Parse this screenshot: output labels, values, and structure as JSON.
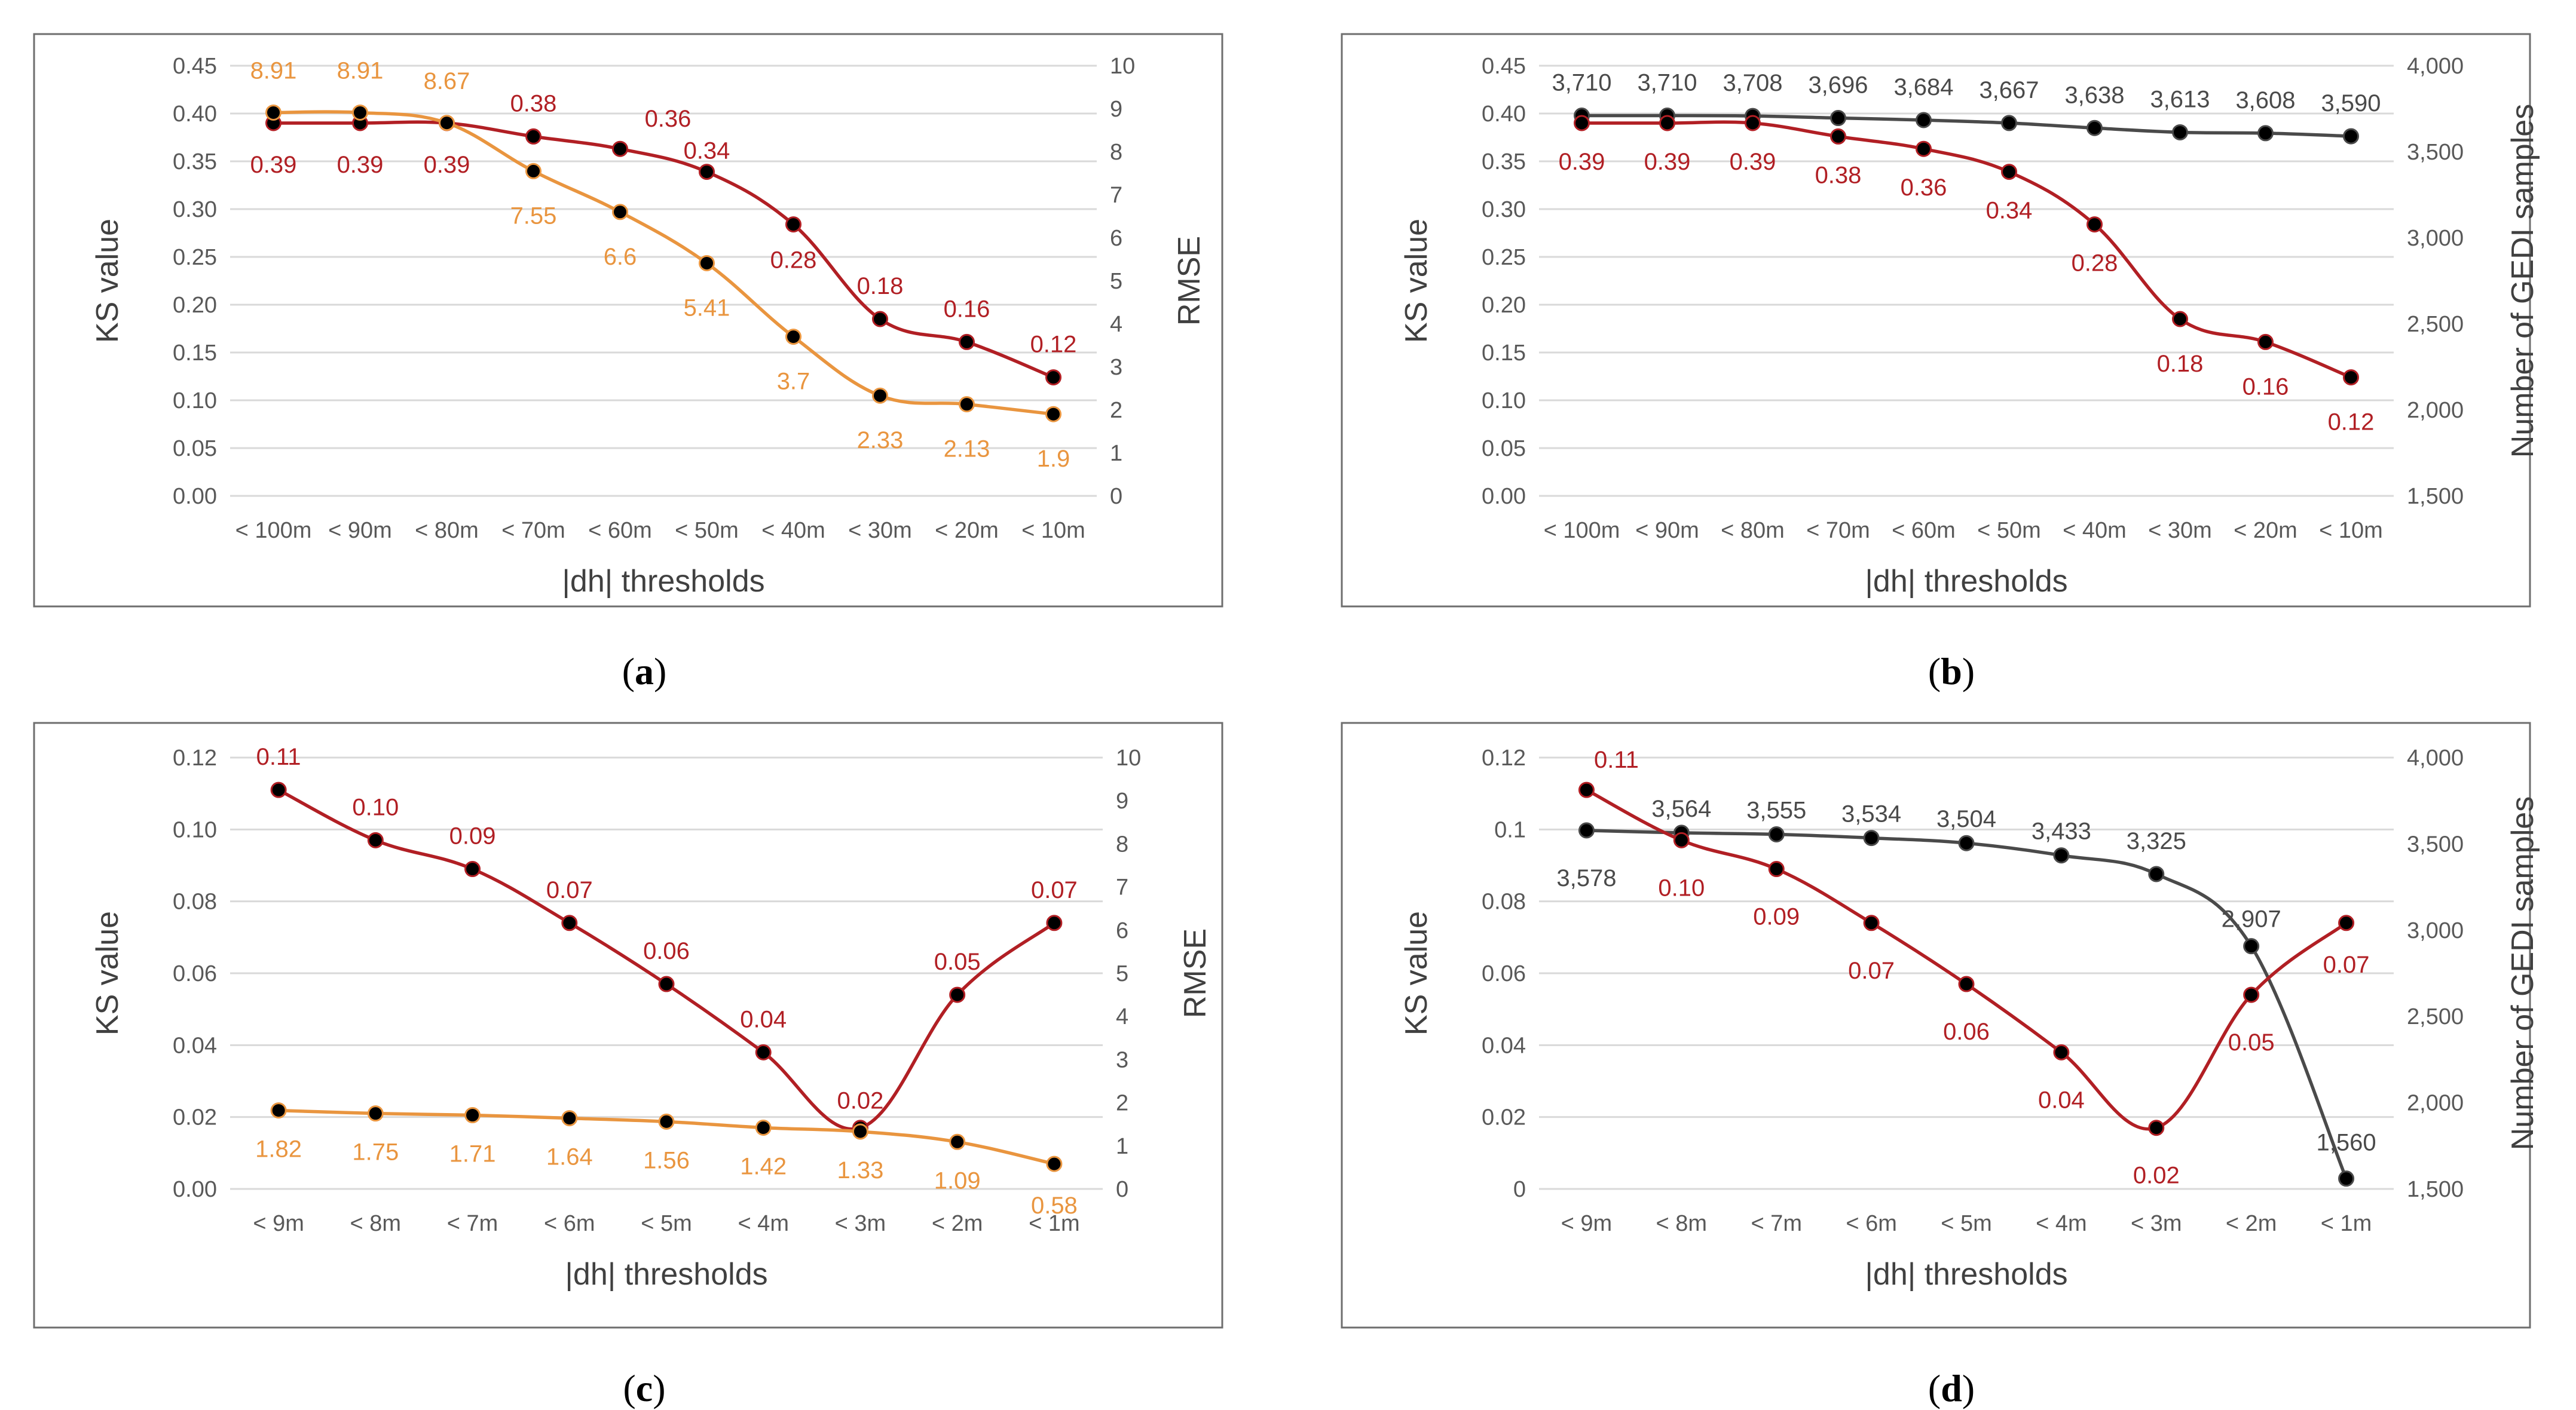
{
  "colors": {
    "ks": "#b11f24",
    "rmse": "#e9953f",
    "gedi": "#4a4a4a",
    "marker": "#000000"
  },
  "charts": [
    {
      "caption": "a",
      "type": "line",
      "title": "",
      "xlabel": "|dh| thresholds",
      "ylabel_left": "KS value",
      "ylabel_right": "RMSE",
      "categories": [
        "< 100m",
        "< 90m",
        "< 80m",
        "< 70m",
        "< 60m",
        "< 50m",
        "< 40m",
        "< 30m",
        "< 20m",
        "< 10m"
      ],
      "left_ticks": [
        "0.00",
        "0.05",
        "0.10",
        "0.15",
        "0.20",
        "0.25",
        "0.30",
        "0.35",
        "0.40",
        "0.45"
      ],
      "right_ticks": [
        "0",
        "1",
        "2",
        "3",
        "4",
        "5",
        "6",
        "7",
        "8",
        "9",
        "10"
      ],
      "ylim_left": [
        0,
        0.45
      ],
      "ylim_right": [
        0,
        10
      ],
      "series": [
        {
          "name": "KS value",
          "axis": "left",
          "color": "ks",
          "values": [
            0.39,
            0.39,
            0.39,
            0.376,
            0.363,
            0.339,
            0.284,
            0.185,
            0.161,
            0.124
          ],
          "labels": [
            "0.39",
            "0.39",
            "0.39",
            "0.38",
            "0.36",
            "0.34",
            "0.28",
            "0.18",
            "0.16",
            "0.12"
          ]
        },
        {
          "name": "RMSE",
          "axis": "right",
          "color": "rmse",
          "values": [
            8.91,
            8.91,
            8.67,
            7.55,
            6.6,
            5.41,
            3.7,
            2.33,
            2.13,
            1.9
          ],
          "labels": [
            "8.91",
            "8.91",
            "8.67",
            "7.55",
            "6.6",
            "5.41",
            "3.7",
            "2.33",
            "2.13",
            "1.9"
          ]
        }
      ]
    },
    {
      "caption": "b",
      "type": "line",
      "title": "",
      "xlabel": "|dh| thresholds",
      "ylabel_left": "KS value",
      "ylabel_right": "Number of GEDI samples",
      "categories": [
        "< 100m",
        "< 90m",
        "< 80m",
        "< 70m",
        "< 60m",
        "< 50m",
        "< 40m",
        "< 30m",
        "< 20m",
        "< 10m"
      ],
      "left_ticks": [
        "0.00",
        "0.05",
        "0.10",
        "0.15",
        "0.20",
        "0.25",
        "0.30",
        "0.35",
        "0.40",
        "0.45"
      ],
      "right_ticks": [
        "1,500",
        "2,000",
        "2,500",
        "3,000",
        "3,500",
        "4,000"
      ],
      "ylim_left": [
        0,
        0.45
      ],
      "ylim_right": [
        1500,
        4000
      ],
      "series": [
        {
          "name": "Number of GEDI samples",
          "axis": "right",
          "color": "gedi",
          "values": [
            3710,
            3710,
            3708,
            3696,
            3684,
            3667,
            3638,
            3613,
            3608,
            3590
          ],
          "labels": [
            "3,710",
            "3,710",
            "3,708",
            "3,696",
            "3,684",
            "3,667",
            "3,638",
            "3,613",
            "3,608",
            "3,590"
          ]
        },
        {
          "name": "KS value",
          "axis": "left",
          "color": "ks",
          "values": [
            0.39,
            0.39,
            0.39,
            0.376,
            0.363,
            0.339,
            0.284,
            0.185,
            0.161,
            0.124
          ],
          "labels": [
            "0.39",
            "0.39",
            "0.39",
            "0.38",
            "0.36",
            "0.34",
            "0.28",
            "0.18",
            "0.16",
            "0.12"
          ]
        }
      ]
    },
    {
      "caption": "c",
      "type": "line",
      "title": "",
      "xlabel": "|dh| thresholds",
      "ylabel_left": "KS value",
      "ylabel_right": "RMSE",
      "categories": [
        "< 9m",
        "< 8m",
        "< 7m",
        "< 6m",
        "< 5m",
        "< 4m",
        "< 3m",
        "< 2m",
        "< 1m"
      ],
      "left_ticks": [
        "0.00",
        "0.02",
        "0.04",
        "0.06",
        "0.08",
        "0.10",
        "0.12"
      ],
      "right_ticks": [
        "0",
        "1",
        "2",
        "3",
        "4",
        "5",
        "6",
        "7",
        "8",
        "9",
        "10"
      ],
      "ylim_left": [
        0,
        0.12
      ],
      "ylim_right": [
        0,
        10
      ],
      "series": [
        {
          "name": "KS value",
          "axis": "left",
          "color": "ks",
          "values": [
            0.111,
            0.097,
            0.089,
            0.074,
            0.057,
            0.038,
            0.017,
            0.054,
            0.074
          ],
          "labels": [
            "0.11",
            "0.10",
            "0.09",
            "0.07",
            "0.06",
            "0.04",
            "0.02",
            "0.05",
            "0.07"
          ]
        },
        {
          "name": "RMSE",
          "axis": "right",
          "color": "rmse",
          "values": [
            1.82,
            1.75,
            1.71,
            1.64,
            1.56,
            1.42,
            1.33,
            1.09,
            0.58
          ],
          "labels": [
            "1.82",
            "1.75",
            "1.71",
            "1.64",
            "1.56",
            "1.42",
            "1.33",
            "1.09",
            "0.58"
          ]
        }
      ]
    },
    {
      "caption": "d",
      "type": "line",
      "title": "",
      "xlabel": "|dh| thresholds",
      "ylabel_left": "KS value",
      "ylabel_right": "Number of GEDI samples",
      "categories": [
        "< 9m",
        "< 8m",
        "< 7m",
        "< 6m",
        "< 5m",
        "< 4m",
        "< 3m",
        "< 2m",
        "< 1m"
      ],
      "left_ticks": [
        "0",
        "0.02",
        "0.04",
        "0.06",
        "0.08",
        "0.1",
        "0.12"
      ],
      "right_ticks": [
        "1,500",
        "2,000",
        "2,500",
        "3,000",
        "3,500",
        "4,000"
      ],
      "ylim_left": [
        0,
        0.12
      ],
      "ylim_right": [
        1500,
        4000
      ],
      "series": [
        {
          "name": "Number of GEDI samples",
          "axis": "right",
          "color": "gedi",
          "values": [
            3578,
            3564,
            3555,
            3534,
            3504,
            3433,
            3325,
            2907,
            1560
          ],
          "labels": [
            "3,578",
            "3,564",
            "3,555",
            "3,534",
            "3,504",
            "3,433",
            "3,325",
            "2,907",
            "1,560"
          ]
        },
        {
          "name": "KS value",
          "axis": "left",
          "color": "ks",
          "values": [
            0.111,
            0.097,
            0.089,
            0.074,
            0.057,
            0.038,
            0.017,
            0.054,
            0.074
          ],
          "labels": [
            "0.11",
            "0.10",
            "0.09",
            "0.07",
            "0.06",
            "0.04",
            "0.02",
            "0.05",
            "0.07"
          ]
        }
      ]
    }
  ]
}
